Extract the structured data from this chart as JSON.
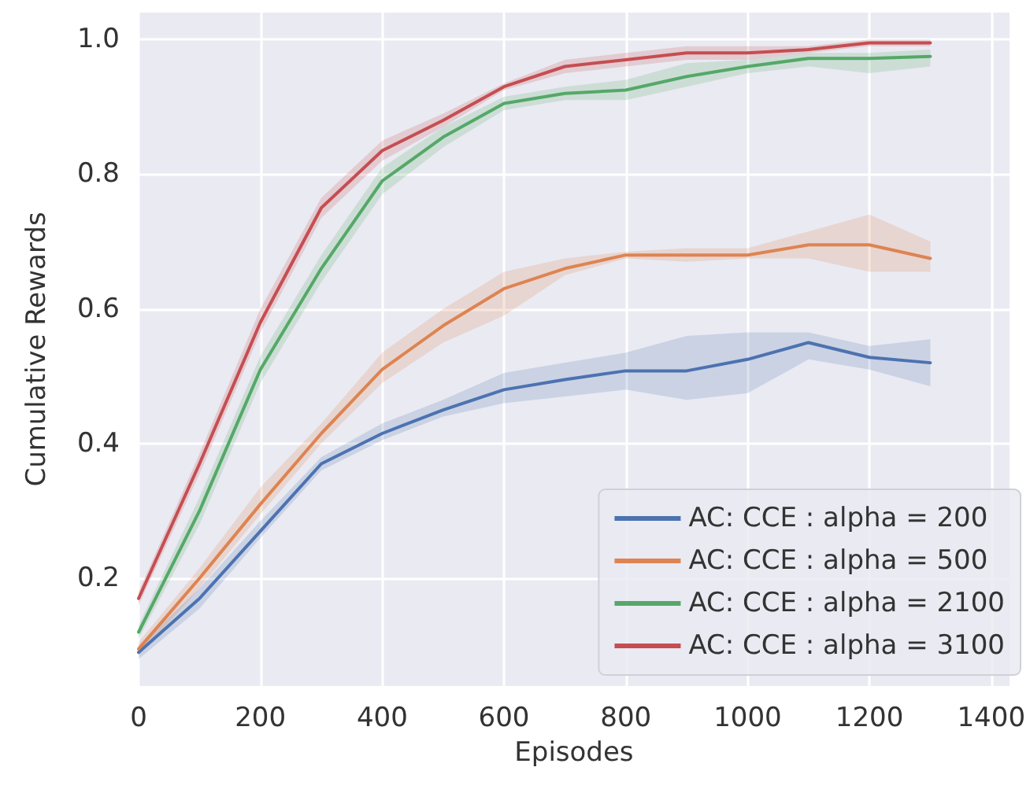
{
  "chart_data": {
    "type": "line",
    "xlabel": "Episodes",
    "ylabel": "Cumulative Rewards",
    "x": [
      0,
      100,
      200,
      300,
      400,
      500,
      600,
      700,
      800,
      900,
      1000,
      1100,
      1200,
      1300
    ],
    "xlim": [
      0,
      1430
    ],
    "xticks": [
      0,
      200,
      400,
      600,
      800,
      1000,
      1200,
      1400
    ],
    "ylim": [
      0.04,
      1.04
    ],
    "yticks": [
      0.2,
      0.4,
      0.6,
      0.8,
      {
        "value": 1,
        "label": "1.0"
      }
    ],
    "grid": true,
    "legend": "bottom right",
    "marker": "none",
    "line_style": "solid",
    "series": [
      {
        "name": "AC: CCE : alpha = 200",
        "color": "#4c72b0",
        "values": [
          0.09,
          0.17,
          0.27,
          0.37,
          0.415,
          0.45,
          0.48,
          0.495,
          0.508,
          0.508,
          0.525,
          0.55,
          0.528,
          0.52
        ],
        "lower": [
          0.08,
          0.155,
          0.26,
          0.36,
          0.405,
          0.44,
          0.46,
          0.47,
          0.48,
          0.465,
          0.475,
          0.525,
          0.51,
          0.485
        ],
        "upper": [
          0.1,
          0.185,
          0.285,
          0.38,
          0.43,
          0.465,
          0.505,
          0.52,
          0.535,
          0.56,
          0.565,
          0.565,
          0.545,
          0.555
        ]
      },
      {
        "name": "AC: CCE : alpha = 500",
        "color": "#dd8452",
        "values": [
          0.095,
          0.2,
          0.31,
          0.415,
          0.51,
          0.575,
          0.63,
          0.66,
          0.68,
          0.68,
          0.68,
          0.695,
          0.695,
          0.675
        ],
        "lower": [
          0.085,
          0.185,
          0.295,
          0.4,
          0.49,
          0.55,
          0.59,
          0.65,
          0.675,
          0.67,
          0.675,
          0.675,
          0.655,
          0.655
        ],
        "upper": [
          0.105,
          0.215,
          0.335,
          0.43,
          0.535,
          0.6,
          0.655,
          0.675,
          0.685,
          0.69,
          0.69,
          0.715,
          0.74,
          0.7
        ]
      },
      {
        "name": "AC: CCE : alpha = 2100",
        "color": "#55a868",
        "values": [
          0.12,
          0.3,
          0.51,
          0.66,
          0.79,
          0.855,
          0.905,
          0.92,
          0.925,
          0.945,
          0.96,
          0.972,
          0.972,
          0.975
        ],
        "lower": [
          0.11,
          0.28,
          0.49,
          0.64,
          0.77,
          0.84,
          0.895,
          0.91,
          0.91,
          0.93,
          0.95,
          0.96,
          0.95,
          0.96
        ],
        "upper": [
          0.13,
          0.32,
          0.53,
          0.68,
          0.81,
          0.87,
          0.915,
          0.93,
          0.94,
          0.965,
          0.97,
          0.98,
          0.98,
          0.985
        ]
      },
      {
        "name": "AC: CCE : alpha = 3100",
        "color": "#c44e52",
        "values": [
          0.17,
          0.37,
          0.58,
          0.75,
          0.835,
          0.88,
          0.93,
          0.96,
          0.97,
          0.98,
          0.98,
          0.985,
          0.995,
          0.995
        ],
        "lower": [
          0.16,
          0.355,
          0.565,
          0.735,
          0.82,
          0.87,
          0.925,
          0.95,
          0.96,
          0.97,
          0.97,
          0.98,
          0.99,
          0.99
        ],
        "upper": [
          0.18,
          0.385,
          0.6,
          0.765,
          0.85,
          0.89,
          0.935,
          0.97,
          0.98,
          0.99,
          0.99,
          0.99,
          1.0,
          1.0
        ]
      }
    ]
  }
}
